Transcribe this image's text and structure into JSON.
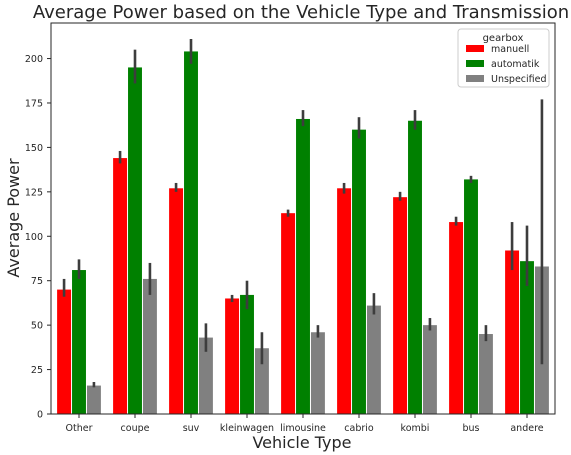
{
  "chart_data": {
    "type": "bar",
    "title": "Average Power based on the Vehicle Type and Transmission",
    "xlabel": "Vehicle Type",
    "ylabel": "Average Power",
    "ylim": [
      0,
      220
    ],
    "yticks": [
      0,
      25,
      50,
      75,
      100,
      125,
      150,
      175,
      200
    ],
    "grid": false,
    "legend": {
      "title": "gearbox",
      "placement": "top-right"
    },
    "categories": [
      "Other",
      "coupe",
      "suv",
      "kleinwagen",
      "limousine",
      "cabrio",
      "kombi",
      "bus",
      "andere"
    ],
    "series": [
      {
        "name": "manuell",
        "color": "#ff0000",
        "values": [
          70,
          144,
          127,
          65,
          113,
          127,
          122,
          108,
          92
        ],
        "error_low": [
          66,
          141,
          125,
          63,
          111,
          124,
          120,
          106,
          81
        ],
        "error_high": [
          76,
          148,
          130,
          67,
          115,
          130,
          125,
          111,
          108
        ]
      },
      {
        "name": "automatik",
        "color": "#008000",
        "values": [
          81,
          195,
          204,
          67,
          166,
          160,
          165,
          132,
          86
        ],
        "error_low": [
          76,
          186,
          197,
          59,
          162,
          155,
          160,
          130,
          72
        ],
        "error_high": [
          87,
          205,
          211,
          75,
          171,
          167,
          171,
          134,
          106
        ]
      },
      {
        "name": "Unspecified",
        "color": "#808080",
        "values": [
          16,
          76,
          43,
          37,
          46,
          61,
          50,
          45,
          83
        ],
        "error_low": [
          15,
          67,
          35,
          28,
          43,
          56,
          47,
          41,
          28
        ],
        "error_high": [
          18,
          85,
          51,
          46,
          50,
          68,
          54,
          50,
          177
        ]
      }
    ]
  }
}
